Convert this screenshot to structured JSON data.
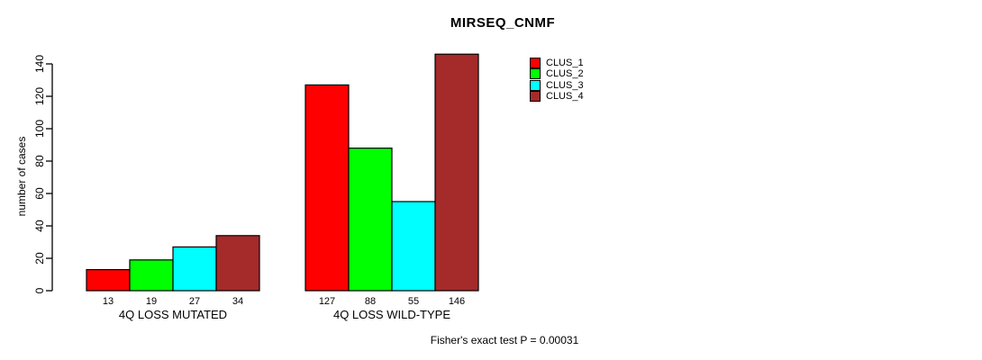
{
  "chart_data": {
    "type": "bar",
    "title": "MIRSEQ_CNMF",
    "ylabel": "number of cases",
    "xlabel": "",
    "categories": [
      "4Q LOSS MUTATED",
      "4Q LOSS WILD-TYPE"
    ],
    "series": [
      {
        "name": "CLUS_1",
        "color": "#FF0000",
        "values": [
          13,
          127
        ]
      },
      {
        "name": "CLUS_2",
        "color": "#00FF00",
        "values": [
          19,
          88
        ]
      },
      {
        "name": "CLUS_3",
        "color": "#00FFFF",
        "values": [
          27,
          55
        ]
      },
      {
        "name": "CLUS_4",
        "color": "#A52A2A",
        "values": [
          34,
          146
        ]
      }
    ],
    "bar_value_labels": [
      [
        "13",
        "19",
        "27",
        "34"
      ],
      [
        "127",
        "88",
        "55",
        "146"
      ]
    ],
    "ylim": [
      0,
      140
    ],
    "yticks": [
      0,
      20,
      40,
      60,
      80,
      100,
      120,
      140
    ],
    "grid": false,
    "legend_position": "top-right",
    "legend_entries": [
      "CLUS_1",
      "CLUS_2",
      "CLUS_3",
      "CLUS_4"
    ],
    "annotation": "Fisher's exact test P = 0.00031"
  },
  "colors": {
    "background": "#FFFFFF",
    "axis": "#000000",
    "bar_border": "#000000",
    "text": "#000000"
  }
}
